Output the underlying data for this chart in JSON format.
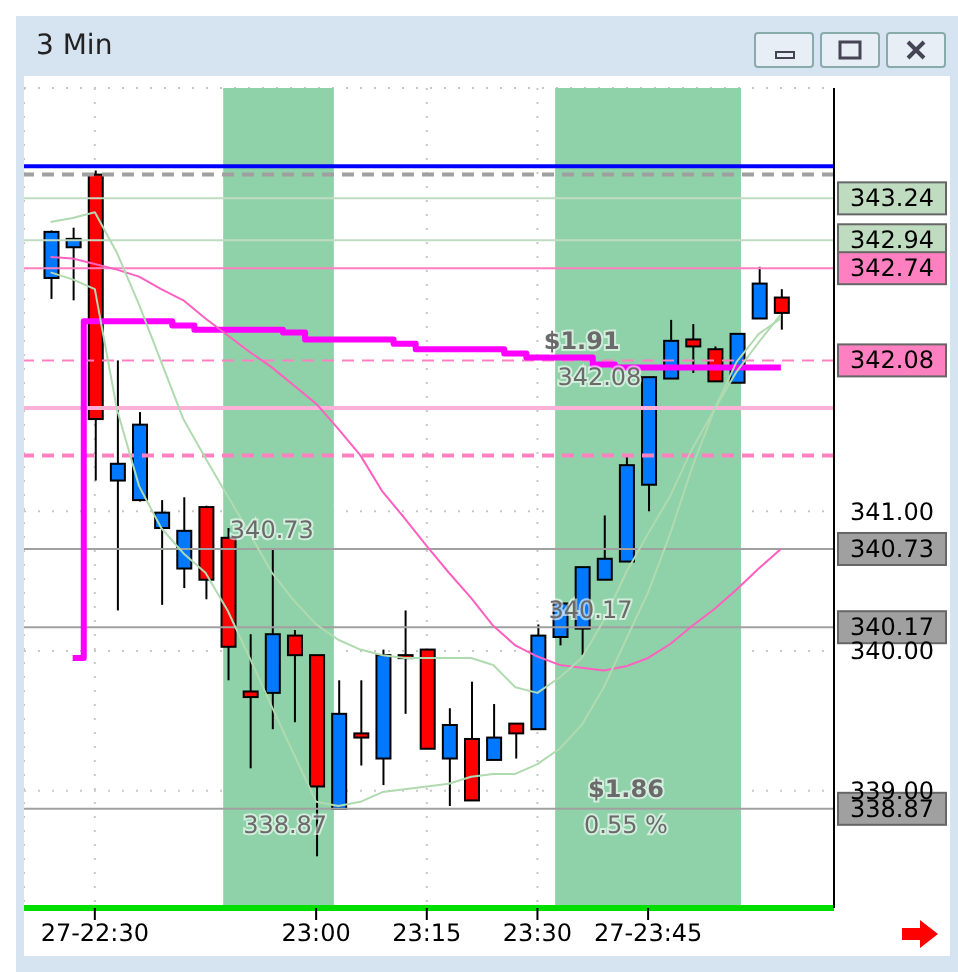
{
  "chart_data": {
    "type": "candlestick",
    "title": "3 Min",
    "x": [
      22.4,
      22.45,
      22.5,
      22.55,
      22.6,
      22.65,
      22.7,
      22.75,
      22.8,
      22.85,
      22.9,
      22.95,
      23,
      23.05,
      23.1,
      23.15,
      23.2,
      23.25,
      23.3,
      23.35,
      23.4,
      23.45,
      23.5,
      23.55,
      23.6,
      23.65,
      23.7,
      23.75,
      23.8,
      23.85,
      23.9,
      23.95,
      24,
      24.05
    ],
    "ohlc": [
      [
        342.67,
        343.01,
        342.52,
        343.0
      ],
      [
        342.89,
        343.03,
        342.51,
        342.95
      ],
      [
        343.41,
        343.44,
        341.22,
        341.66
      ],
      [
        341.22,
        342.08,
        340.29,
        341.34
      ],
      [
        341.08,
        341.71,
        341.07,
        341.62
      ],
      [
        340.88,
        341.08,
        340.33,
        340.99
      ],
      [
        340.59,
        341.1,
        340.45,
        340.86
      ],
      [
        341.03,
        341.04,
        340.37,
        340.51
      ],
      [
        340.81,
        340.88,
        339.79,
        340.03
      ],
      [
        339.71,
        340.12,
        339.16,
        339.67
      ],
      [
        339.7,
        340.73,
        339.44,
        340.12
      ],
      [
        340.11,
        340.15,
        339.49,
        339.97
      ],
      [
        339.97,
        339.97,
        338.53,
        339.03
      ],
      [
        338.87,
        339.79,
        338.87,
        339.55
      ],
      [
        339.41,
        339.79,
        339.18,
        339.38
      ],
      [
        339.23,
        340.01,
        339.04,
        339.97
      ],
      [
        339.97,
        340.29,
        339.55,
        339.95
      ],
      [
        340.01,
        340.01,
        339.3,
        339.3
      ],
      [
        339.23,
        339.59,
        338.89,
        339.47
      ],
      [
        339.37,
        339.78,
        338.93,
        338.93
      ],
      [
        339.22,
        339.62,
        339.22,
        339.38
      ],
      [
        339.48,
        339.48,
        339.23,
        339.41
      ],
      [
        339.44,
        340.19,
        339.44,
        340.11
      ],
      [
        340.1,
        340.34,
        340.04,
        340.34
      ],
      [
        340.16,
        340.6,
        339.97,
        340.6
      ],
      [
        340.51,
        340.97,
        340.51,
        340.66
      ],
      [
        340.64,
        341.4,
        340.64,
        341.33
      ],
      [
        341.19,
        341.96,
        341.0,
        341.96
      ],
      [
        341.95,
        342.37,
        341.95,
        342.22
      ],
      [
        342.23,
        342.34,
        341.99,
        342.18
      ],
      [
        342.16,
        342.18,
        341.93,
        341.93
      ],
      [
        341.92,
        342.27,
        341.92,
        342.27
      ],
      [
        342.38,
        342.75,
        342.38,
        342.63
      ],
      [
        342.53,
        342.59,
        342.3,
        342.42
      ]
    ],
    "colors": [
      "#0078ff",
      "#0078ff",
      "#ff0000",
      "#0078ff",
      "#0078ff",
      "#0078ff",
      "#0078ff",
      "#ff0000",
      "#ff0000",
      "#ff0000",
      "#0078ff",
      "#ff0000",
      "#ff0000",
      "#0078ff",
      "#ff0000",
      "#0078ff",
      "#ff0000",
      "#ff0000",
      "#0078ff",
      "#ff0000",
      "#0078ff",
      "#ff0000",
      "#0078ff",
      "#0078ff",
      "#0078ff",
      "#0078ff",
      "#0078ff",
      "#0078ff",
      "#0078ff",
      "#ff0000",
      "#ff0000",
      "#0078ff",
      "#0078ff",
      "#ff0000"
    ],
    "series": [
      {
        "type": "step",
        "color": "#ff00ff",
        "values": [
          null,
          339.95,
          342.36,
          342.36,
          342.36,
          342.36,
          342.33,
          342.3,
          342.3,
          342.3,
          342.3,
          342.28,
          342.23,
          342.23,
          342.23,
          342.23,
          342.2,
          342.16,
          342.16,
          342.16,
          342.16,
          342.13,
          342.1,
          342.1,
          342.1,
          342.05,
          342.03,
          342.03,
          342.03,
          342.03,
          342.03,
          342.03,
          342.03,
          342.03
        ]
      },
      {
        "type": "line",
        "color": "#ff60c0",
        "values": [
          342.82,
          342.81,
          342.77,
          342.73,
          342.68,
          342.59,
          342.51,
          342.38,
          342.26,
          342.14,
          342.03,
          341.9,
          341.77,
          341.59,
          341.4,
          341.14,
          340.95,
          340.75,
          340.56,
          340.38,
          340.18,
          340.04,
          339.96,
          339.9,
          339.88,
          339.86,
          339.89,
          339.95,
          340.05,
          340.18,
          340.3,
          340.44,
          340.59,
          340.73
        ]
      },
      {
        "type": "line",
        "color": "#b0dab0",
        "values": [
          342.71,
          342.66,
          342.59,
          341.73,
          341.18,
          340.88,
          340.7,
          340.56,
          340.29,
          339.95,
          339.6,
          339.26,
          338.92,
          338.89,
          338.92,
          338.99,
          339.01,
          339.03,
          339.05,
          339.1,
          339.12,
          339.12,
          339.19,
          339.3,
          339.47,
          339.74,
          340.08,
          340.42,
          340.84,
          341.32,
          341.73,
          342.07,
          342.27,
          342.38
        ]
      },
      {
        "type": "line",
        "color": "#b0dab0",
        "values": [
          343.07,
          343.1,
          343.14,
          342.85,
          342.48,
          342.07,
          341.66,
          341.38,
          341.11,
          340.84,
          340.56,
          340.36,
          340.19,
          340.08,
          340.01,
          339.97,
          339.95,
          339.95,
          339.95,
          339.95,
          339.9,
          339.74,
          339.7,
          339.81,
          339.95,
          340.22,
          340.56,
          340.84,
          341.11,
          341.45,
          341.73,
          342.0,
          342.21,
          342.41
        ]
      }
    ],
    "xlim": [
      22.34,
      24.17
    ],
    "xticks": [
      {
        "value": 22.5,
        "label": "27-22:30"
      },
      {
        "value": 23,
        "label": "23:00"
      },
      {
        "value": 23.25,
        "label": "23:15"
      },
      {
        "value": 23.5,
        "label": "23:30"
      },
      {
        "value": 23.75,
        "label": "27-23:45"
      }
    ],
    "ylim": [
      338.16,
      344.03
    ],
    "yticks": [
      {
        "value": 339,
        "label": "339.00"
      },
      {
        "value": 340,
        "label": "340.00"
      },
      {
        "value": 341,
        "label": "341.00"
      }
    ],
    "grid": true,
    "marker": "none",
    "line_style": "solid",
    "ref_lines": [
      {
        "axis": "y",
        "value": 343.47,
        "color": "#0000ff",
        "line_style": "solid"
      },
      {
        "axis": "y",
        "value": 343.41,
        "color": "#a0a0a0",
        "line_style": "dashed"
      },
      {
        "axis": "y",
        "value": 341.74,
        "color": "#ffb0d8",
        "line_style": "solid"
      },
      {
        "axis": "y",
        "value": 341.4,
        "color": "#ff80c0",
        "line_style": "dashed"
      },
      {
        "axis": "y",
        "value": 343.24,
        "label": "343.24",
        "color": "#c0dcc0",
        "line_style": "solid"
      },
      {
        "axis": "y",
        "value": 342.94,
        "label": "342.94",
        "color": "#c0dcc0",
        "line_style": "solid"
      },
      {
        "axis": "y",
        "value": 342.74,
        "label": "342.74",
        "color": "#ff80c0",
        "line_style": "solid"
      },
      {
        "axis": "y",
        "value": 342.08,
        "label": "342.08",
        "color": "#ff80c0",
        "line_style": "dashed"
      },
      {
        "axis": "y",
        "value": 340.73,
        "label": "340.73",
        "color": "#a0a0a0",
        "line_style": "solid"
      },
      {
        "axis": "y",
        "value": 340.17,
        "label": "340.17",
        "color": "#a0a0a0",
        "line_style": "solid"
      },
      {
        "axis": "y",
        "value": 338.87,
        "label": "338.87",
        "color": "#a0a0a0",
        "line_style": "solid"
      }
    ],
    "bands": [
      {
        "axis": "x",
        "from": 22.79,
        "to": 23.04,
        "color": "#8fd1a8"
      },
      {
        "axis": "x",
        "from": 23.54,
        "to": 23.96,
        "color": "#8fd1a8"
      }
    ],
    "annotations": [
      {
        "text": "$1.91",
        "x": 23.6,
        "y": 342.08
      },
      {
        "text": "342.08",
        "x": 23.64,
        "y": 342.08
      },
      {
        "text": "340.73",
        "x": 22.9,
        "y": 340.73
      },
      {
        "text": "340.17",
        "x": 23.62,
        "y": 340.17
      },
      {
        "text": "338.87",
        "x": 22.93,
        "y": 338.87
      },
      {
        "text": "$1.86",
        "x": 23.7,
        "y": 338.87
      },
      {
        "text": "0.55 %",
        "x": 23.7,
        "y": 338.87
      }
    ]
  }
}
